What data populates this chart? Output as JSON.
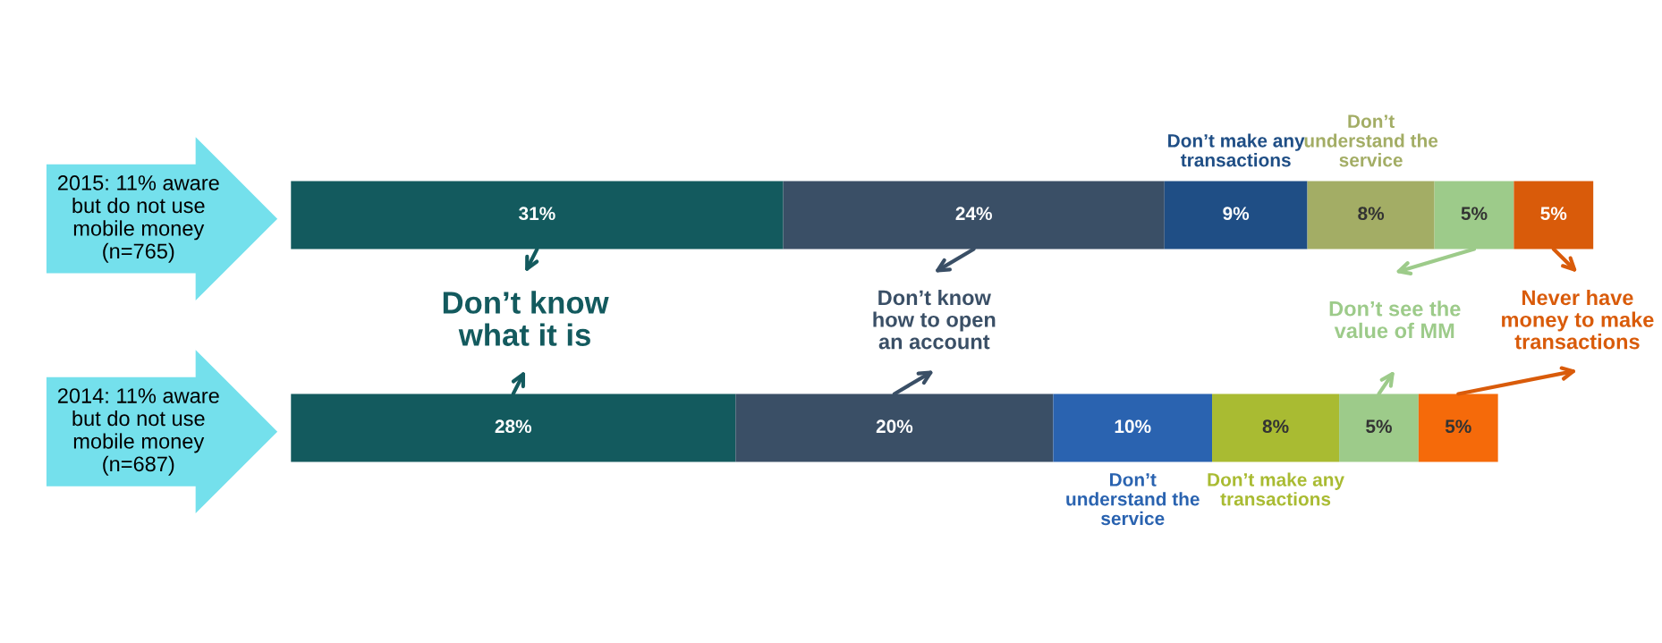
{
  "chart_data": {
    "type": "bar",
    "orientation": "horizontal",
    "stacked": true,
    "categories": [
      "2015: 11% aware but do not use mobile money (n=765)",
      "2014: 11% aware but do not use mobile money (n=687)"
    ],
    "series": [
      {
        "name": "Don’t know what it is",
        "colors": [
          "#135a5e",
          "#135a5e"
        ],
        "values": [
          31,
          28
        ],
        "value_labels": [
          "31%",
          "28%"
        ]
      },
      {
        "name": "Don’t know how to open an account",
        "colors": [
          "#3a4f66",
          "#3a4f66"
        ],
        "values": [
          24,
          20
        ],
        "value_labels": [
          "24%",
          "20%"
        ]
      },
      {
        "colors": [
          "#1f4e85",
          "#2a63b0"
        ],
        "values": [
          9,
          10
        ],
        "value_labels": [
          "9%",
          "10%"
        ]
      },
      {
        "colors": [
          "#a3ad65",
          "#a9bb32"
        ],
        "values": [
          8,
          8
        ],
        "value_labels": [
          "8%",
          "8%"
        ]
      },
      {
        "name": "Don’t see the value of MM",
        "colors": [
          "#9dcb8a",
          "#9dcb8a"
        ],
        "values": [
          5,
          5
        ],
        "value_labels": [
          "5%",
          "5%"
        ]
      },
      {
        "name": "Never have money to make transactions",
        "colors": [
          "#d95b0a",
          "#f56a0a"
        ],
        "values": [
          5,
          5
        ],
        "value_labels": [
          "5%",
          "5%"
        ]
      }
    ],
    "annotations": [
      "Don’t make any transactions",
      "Don’t understand the service",
      "Don’t understand the service",
      "Don’t make any transactions"
    ],
    "legend": "center",
    "tick_labels": "y"
  }
}
